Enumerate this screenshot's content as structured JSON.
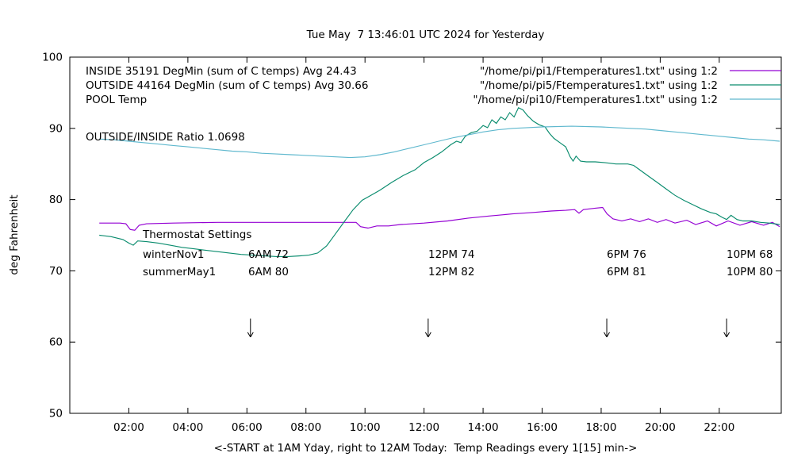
{
  "title": "Tue May  7 13:46:01 UTC 2024 for Yesterday",
  "ylabel": "deg Fahrenheit",
  "xlabel": "<-START at 1AM Yday, right to 12AM Today:  Temp Readings every 1[15] min->",
  "ratio_label": "OUTSIDE/INSIDE Ratio 1.0698",
  "thermostat": {
    "title": "Thermostat Settings",
    "rows": [
      {
        "name": "winterNov1",
        "cols": [
          "6AM 72",
          "12PM 74",
          "6PM 76",
          "10PM 68"
        ]
      },
      {
        "name": "summerMay1",
        "cols": [
          "6AM 80",
          "12PM 82",
          "6PM 81",
          "10PM 80"
        ]
      }
    ]
  },
  "chart_data": {
    "type": "line",
    "title": "Tue May  7 13:46:01 UTC 2024 for Yesterday",
    "xlabel": "<-START at 1AM Yday, right to 12AM Today:  Temp Readings every 1[15] min->",
    "ylabel": "deg Fahrenheit",
    "xlim": [
      0,
      24.1
    ],
    "ylim": [
      50,
      100
    ],
    "grid": false,
    "legend_position": "top-right-inside",
    "xticks": [
      {
        "v": 2,
        "label": "02:00"
      },
      {
        "v": 4,
        "label": "04:00"
      },
      {
        "v": 6,
        "label": "06:00"
      },
      {
        "v": 8,
        "label": "08:00"
      },
      {
        "v": 10,
        "label": "10:00"
      },
      {
        "v": 12,
        "label": "12:00"
      },
      {
        "v": 14,
        "label": "14:00"
      },
      {
        "v": 16,
        "label": "16:00"
      },
      {
        "v": 18,
        "label": "18:00"
      },
      {
        "v": 20,
        "label": "20:00"
      },
      {
        "v": 22,
        "label": "22:00"
      }
    ],
    "yticks": [
      {
        "v": 50,
        "label": "50"
      },
      {
        "v": 60,
        "label": "60"
      },
      {
        "v": 70,
        "label": "70"
      },
      {
        "v": 80,
        "label": "80"
      },
      {
        "v": 90,
        "label": "90"
      },
      {
        "v": 100,
        "label": "100"
      }
    ],
    "arrows": {
      "hours": [
        6.12,
        12.14,
        18.19,
        22.25
      ],
      "from_f": 63.3,
      "to_f": 60.7
    },
    "series": [
      {
        "key": "inside",
        "name": "INSIDE 35191 DegMin (sum of C temps) Avg 24.43",
        "file": "\"/home/pi/pi1/Ftemperatures1.txt\" using 1:2",
        "color": "#9400d3",
        "points": [
          [
            1.0,
            76.7
          ],
          [
            1.7,
            76.7
          ],
          [
            1.9,
            76.6
          ],
          [
            2.05,
            75.8
          ],
          [
            2.2,
            75.7
          ],
          [
            2.35,
            76.4
          ],
          [
            2.6,
            76.6
          ],
          [
            3.5,
            76.7
          ],
          [
            5,
            76.8
          ],
          [
            7,
            76.8
          ],
          [
            9,
            76.8
          ],
          [
            9.7,
            76.8
          ],
          [
            9.85,
            76.2
          ],
          [
            10.1,
            76.0
          ],
          [
            10.4,
            76.3
          ],
          [
            10.8,
            76.3
          ],
          [
            11.2,
            76.5
          ],
          [
            12,
            76.7
          ],
          [
            12.8,
            77.0
          ],
          [
            13.5,
            77.4
          ],
          [
            14.2,
            77.7
          ],
          [
            15,
            78.0
          ],
          [
            15.7,
            78.2
          ],
          [
            16.3,
            78.4
          ],
          [
            16.8,
            78.5
          ],
          [
            17.1,
            78.6
          ],
          [
            17.25,
            78.1
          ],
          [
            17.4,
            78.6
          ],
          [
            17.8,
            78.8
          ],
          [
            18.05,
            78.9
          ],
          [
            18.2,
            78.0
          ],
          [
            18.4,
            77.3
          ],
          [
            18.7,
            77.0
          ],
          [
            19.0,
            77.3
          ],
          [
            19.3,
            76.9
          ],
          [
            19.6,
            77.3
          ],
          [
            19.9,
            76.8
          ],
          [
            20.2,
            77.2
          ],
          [
            20.5,
            76.7
          ],
          [
            20.9,
            77.1
          ],
          [
            21.2,
            76.5
          ],
          [
            21.6,
            77.0
          ],
          [
            21.9,
            76.3
          ],
          [
            22.3,
            77.0
          ],
          [
            22.7,
            76.4
          ],
          [
            23.1,
            76.9
          ],
          [
            23.5,
            76.4
          ],
          [
            23.8,
            76.8
          ],
          [
            24.05,
            76.2
          ]
        ]
      },
      {
        "key": "outside",
        "name": "OUTSIDE 44164 DegMin (sum of C temps) Avg 30.66",
        "file": "\"/home/pi/pi5/Ftemperatures1.txt\" using 1:2",
        "color": "#0a8c6e",
        "points": [
          [
            1.0,
            75.0
          ],
          [
            1.4,
            74.8
          ],
          [
            1.8,
            74.4
          ],
          [
            2.0,
            73.9
          ],
          [
            2.15,
            73.6
          ],
          [
            2.3,
            74.2
          ],
          [
            2.6,
            74.1
          ],
          [
            3.0,
            73.9
          ],
          [
            3.4,
            73.6
          ],
          [
            3.8,
            73.3
          ],
          [
            4.2,
            73.1
          ],
          [
            4.6,
            72.9
          ],
          [
            5.0,
            72.7
          ],
          [
            5.4,
            72.5
          ],
          [
            5.8,
            72.3
          ],
          [
            6.2,
            72.2
          ],
          [
            6.6,
            72.1
          ],
          [
            7.0,
            72.0
          ],
          [
            7.4,
            72.0
          ],
          [
            7.8,
            72.1
          ],
          [
            8.1,
            72.2
          ],
          [
            8.4,
            72.5
          ],
          [
            8.7,
            73.5
          ],
          [
            9.0,
            75.2
          ],
          [
            9.3,
            76.9
          ],
          [
            9.6,
            78.6
          ],
          [
            9.9,
            79.9
          ],
          [
            10.2,
            80.6
          ],
          [
            10.5,
            81.3
          ],
          [
            10.9,
            82.4
          ],
          [
            11.3,
            83.4
          ],
          [
            11.7,
            84.2
          ],
          [
            12.0,
            85.2
          ],
          [
            12.3,
            85.9
          ],
          [
            12.6,
            86.7
          ],
          [
            12.9,
            87.7
          ],
          [
            13.1,
            88.2
          ],
          [
            13.25,
            88.0
          ],
          [
            13.4,
            88.9
          ],
          [
            13.6,
            89.4
          ],
          [
            13.8,
            89.6
          ],
          [
            14.0,
            90.4
          ],
          [
            14.15,
            90.1
          ],
          [
            14.3,
            91.2
          ],
          [
            14.45,
            90.7
          ],
          [
            14.6,
            91.6
          ],
          [
            14.75,
            91.2
          ],
          [
            14.9,
            92.2
          ],
          [
            15.05,
            91.6
          ],
          [
            15.2,
            92.9
          ],
          [
            15.35,
            92.6
          ],
          [
            15.5,
            91.8
          ],
          [
            15.7,
            91.0
          ],
          [
            15.9,
            90.5
          ],
          [
            16.1,
            90.2
          ],
          [
            16.25,
            89.3
          ],
          [
            16.4,
            88.6
          ],
          [
            16.6,
            88.0
          ],
          [
            16.8,
            87.4
          ],
          [
            16.95,
            86.0
          ],
          [
            17.05,
            85.4
          ],
          [
            17.15,
            86.1
          ],
          [
            17.3,
            85.4
          ],
          [
            17.5,
            85.3
          ],
          [
            17.8,
            85.3
          ],
          [
            18.1,
            85.2
          ],
          [
            18.5,
            85.0
          ],
          [
            18.9,
            85.0
          ],
          [
            19.1,
            84.8
          ],
          [
            19.3,
            84.2
          ],
          [
            19.6,
            83.3
          ],
          [
            19.9,
            82.4
          ],
          [
            20.2,
            81.5
          ],
          [
            20.5,
            80.6
          ],
          [
            20.8,
            79.9
          ],
          [
            21.1,
            79.3
          ],
          [
            21.4,
            78.7
          ],
          [
            21.7,
            78.2
          ],
          [
            21.9,
            78.0
          ],
          [
            22.1,
            77.5
          ],
          [
            22.25,
            77.2
          ],
          [
            22.4,
            77.8
          ],
          [
            22.6,
            77.2
          ],
          [
            22.8,
            77.0
          ],
          [
            23.1,
            77.0
          ],
          [
            23.4,
            76.8
          ],
          [
            23.7,
            76.7
          ],
          [
            24.05,
            76.5
          ]
        ]
      },
      {
        "key": "pool",
        "name": "POOL Temp",
        "file": "\"/home/pi/pi10/Ftemperatures1.txt\" using 1:2",
        "color": "#5fb8ce",
        "points": [
          [
            1,
            88.5
          ],
          [
            1.5,
            88.4
          ],
          [
            2,
            88.2
          ],
          [
            2.5,
            88.0
          ],
          [
            3,
            87.8
          ],
          [
            3.5,
            87.6
          ],
          [
            4,
            87.4
          ],
          [
            4.5,
            87.2
          ],
          [
            5,
            87.0
          ],
          [
            5.5,
            86.8
          ],
          [
            6,
            86.7
          ],
          [
            6.5,
            86.5
          ],
          [
            7,
            86.4
          ],
          [
            7.5,
            86.3
          ],
          [
            8,
            86.2
          ],
          [
            8.5,
            86.1
          ],
          [
            9,
            86.0
          ],
          [
            9.5,
            85.9
          ],
          [
            10,
            86.0
          ],
          [
            10.5,
            86.3
          ],
          [
            11,
            86.7
          ],
          [
            11.5,
            87.2
          ],
          [
            12,
            87.7
          ],
          [
            12.5,
            88.2
          ],
          [
            13,
            88.7
          ],
          [
            13.5,
            89.1
          ],
          [
            14,
            89.5
          ],
          [
            14.5,
            89.8
          ],
          [
            15,
            90.0
          ],
          [
            15.5,
            90.1
          ],
          [
            16,
            90.2
          ],
          [
            17,
            90.3
          ],
          [
            18,
            90.2
          ],
          [
            18.5,
            90.1
          ],
          [
            19,
            90.0
          ],
          [
            19.5,
            89.9
          ],
          [
            20,
            89.7
          ],
          [
            20.5,
            89.5
          ],
          [
            21,
            89.3
          ],
          [
            21.5,
            89.1
          ],
          [
            22,
            88.9
          ],
          [
            22.5,
            88.7
          ],
          [
            23,
            88.5
          ],
          [
            23.5,
            88.4
          ],
          [
            24.05,
            88.2
          ]
        ]
      }
    ]
  }
}
